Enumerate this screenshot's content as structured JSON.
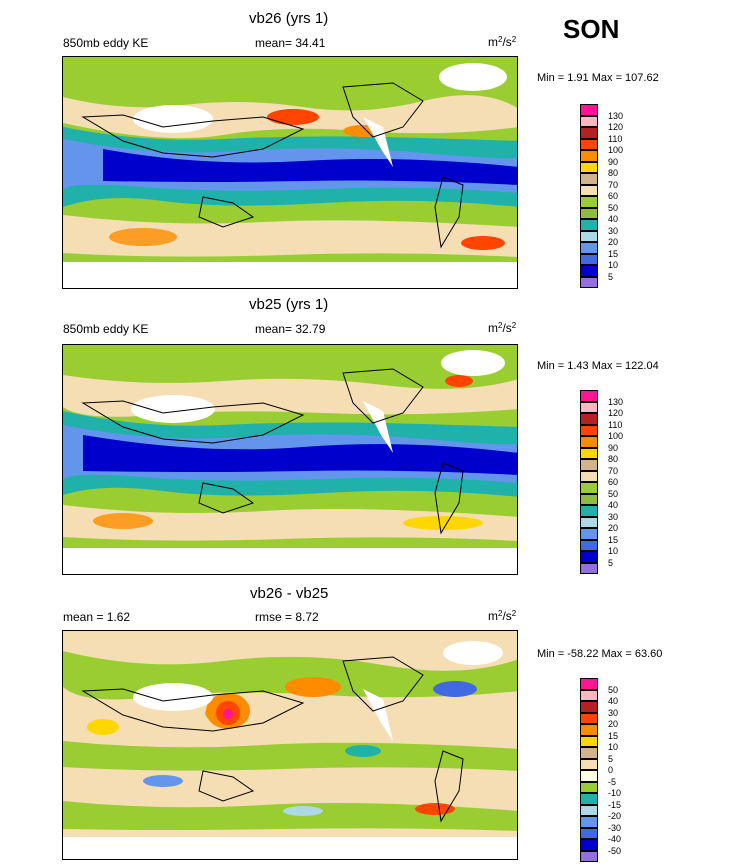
{
  "season": "SON",
  "panels": [
    {
      "title": "vb26 (yrs 1)",
      "left_label": "850mb eddy KE",
      "mid_label": "mean=  34.41",
      "units": "m",
      "units_exp_a": "2",
      "units_slash": "/s",
      "units_exp_b": "2",
      "minmax": "Min =  1.91 Max = 107.62",
      "colorbar": {
        "labels": [
          "130",
          "120",
          "110",
          "100",
          "90",
          "80",
          "70",
          "60",
          "50",
          "40",
          "30",
          "20",
          "15",
          "10",
          "5"
        ],
        "colors": [
          "#ff1493",
          "#ffb6c1",
          "#b22222",
          "#ff4500",
          "#ff8c00",
          "#ffd700",
          "#d2b48c",
          "#f5deb3",
          "#9acd32",
          "#8fbc3f",
          "#20b2aa",
          "#add8e6",
          "#6495ed",
          "#4169e1",
          "#0000cd",
          "#9370db"
        ]
      }
    },
    {
      "title": "vb25 (yrs 1)",
      "left_label": "850mb eddy KE",
      "mid_label": "mean=  32.79",
      "units": "m",
      "units_exp_a": "2",
      "units_slash": "/s",
      "units_exp_b": "2",
      "minmax": "Min =  1.43 Max = 122.04",
      "colorbar": {
        "labels": [
          "130",
          "120",
          "110",
          "100",
          "90",
          "80",
          "70",
          "60",
          "50",
          "40",
          "30",
          "20",
          "15",
          "10",
          "5"
        ],
        "colors": [
          "#ff1493",
          "#ffb6c1",
          "#b22222",
          "#ff4500",
          "#ff8c00",
          "#ffd700",
          "#d2b48c",
          "#f5deb3",
          "#9acd32",
          "#8fbc3f",
          "#20b2aa",
          "#add8e6",
          "#6495ed",
          "#4169e1",
          "#0000cd",
          "#9370db"
        ]
      }
    },
    {
      "title": "vb26 - vb25",
      "left_label": "mean =   1.62",
      "mid_label": "rmse =   8.72",
      "units": "m",
      "units_exp_a": "2",
      "units_slash": "/s",
      "units_exp_b": "2",
      "minmax": "Min = -58.22 Max =  63.60",
      "colorbar": {
        "labels": [
          "50",
          "40",
          "30",
          "20",
          "15",
          "10",
          "5",
          "0",
          "-5",
          "-10",
          "-15",
          "-20",
          "-30",
          "-40",
          "-50"
        ],
        "colors": [
          "#ff1493",
          "#ffb6c1",
          "#b22222",
          "#ff4500",
          "#ff8c00",
          "#ffd700",
          "#d2b48c",
          "#f5deb3",
          "#ffffe0",
          "#9acd32",
          "#20b2aa",
          "#add8e6",
          "#6495ed",
          "#4169e1",
          "#0000cd",
          "#9370db"
        ]
      }
    }
  ],
  "chart_data": [
    {
      "type": "heatmap",
      "title": "vb26 (yrs 1)",
      "subtitle": "850mb eddy KE",
      "mean": 34.41,
      "min": 1.91,
      "max": 107.62,
      "units": "m2/s2",
      "contour_levels": [
        5,
        10,
        15,
        20,
        30,
        40,
        50,
        60,
        70,
        80,
        90,
        100,
        110,
        120,
        130
      ]
    },
    {
      "type": "heatmap",
      "title": "vb25 (yrs 1)",
      "subtitle": "850mb eddy KE",
      "mean": 32.79,
      "min": 1.43,
      "max": 122.04,
      "units": "m2/s2",
      "contour_levels": [
        5,
        10,
        15,
        20,
        30,
        40,
        50,
        60,
        70,
        80,
        90,
        100,
        110,
        120,
        130
      ]
    },
    {
      "type": "heatmap",
      "title": "vb26 - vb25",
      "mean": 1.62,
      "rmse": 8.72,
      "min": -58.22,
      "max": 63.6,
      "units": "m2/s2",
      "contour_levels": [
        -50,
        -40,
        -30,
        -20,
        -15,
        -10,
        -5,
        0,
        5,
        10,
        15,
        20,
        30,
        40,
        50
      ]
    }
  ]
}
